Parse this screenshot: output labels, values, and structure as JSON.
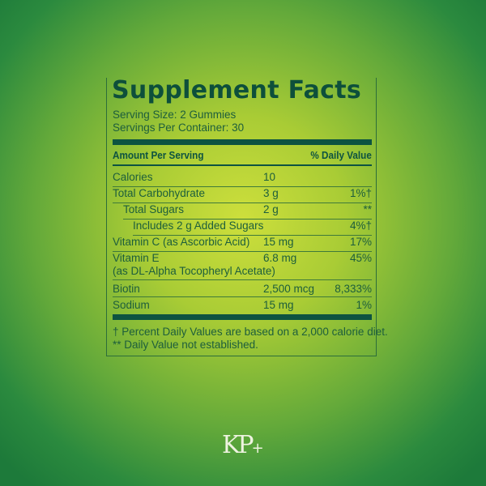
{
  "title": "Supplement Facts",
  "serving_size": "Serving Size: 2 Gummies",
  "servings_per_container": "Servings Per Container: 30",
  "header": {
    "amount": "Amount Per Serving",
    "dv": "% Daily Value"
  },
  "rows": [
    {
      "name": "Calories",
      "amount": "10",
      "dv": ""
    },
    {
      "name": "Total Carbohydrate",
      "amount": "3 g",
      "dv": "1%†"
    },
    {
      "name": "Total Sugars",
      "amount": "2 g",
      "dv": "**"
    },
    {
      "name": "Includes 2 g Added Sugars",
      "amount": "",
      "dv": "4%†"
    },
    {
      "name": "Vitamin C (as Ascorbic Acid)",
      "amount": "15 mg",
      "dv": "17%"
    },
    {
      "name": "Vitamin E",
      "name2": "(as DL-Alpha Tocopheryl Acetate)",
      "amount": "6.8 mg",
      "dv": "45%"
    },
    {
      "name": "Biotin",
      "amount": "2,500 mcg",
      "dv": "8,333%"
    },
    {
      "name": "Sodium",
      "amount": "15 mg",
      "dv": "1%"
    }
  ],
  "footnotes": [
    "† Percent Daily Values are based on a 2,000 calorie diet.",
    "** Daily Value not established."
  ],
  "logo": {
    "text": "KP",
    "plus": "+"
  },
  "colors": {
    "text": "#12583f",
    "title": "#0d4f3b",
    "bg_center": "#cddf3c",
    "bg_edge": "#1d7a3a"
  }
}
